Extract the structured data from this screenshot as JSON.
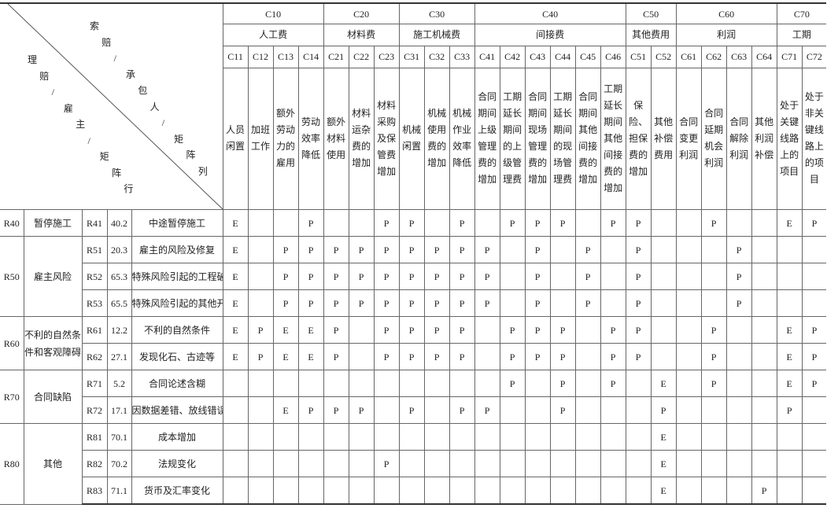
{
  "corner": {
    "upper": "索赔/承包人/矩阵列",
    "lower": "理赔/雇主/矩阵行"
  },
  "groups": [
    {
      "code": "C10",
      "name": "人工费",
      "cols": [
        {
          "code": "C11",
          "label": "人员闲置"
        },
        {
          "code": "C12",
          "label": "加班工作"
        },
        {
          "code": "C13",
          "label": "额外劳动力的雇用"
        },
        {
          "code": "C14",
          "label": "劳动效率降低"
        }
      ]
    },
    {
      "code": "C20",
      "name": "材料费",
      "cols": [
        {
          "code": "C21",
          "label": "额外材料使用"
        },
        {
          "code": "C22",
          "label": "材料运杂费的增加"
        },
        {
          "code": "C23",
          "label": "材料采购及保管费增加"
        }
      ]
    },
    {
      "code": "C30",
      "name": "施工机械费",
      "cols": [
        {
          "code": "C31",
          "label": "机械闲置"
        },
        {
          "code": "C32",
          "label": "机械使用费的增加"
        },
        {
          "code": "C33",
          "label": "机械作业效率降低"
        }
      ]
    },
    {
      "code": "C40",
      "name": "间接费",
      "cols": [
        {
          "code": "C41",
          "label": "合同期间上级管理费的增加"
        },
        {
          "code": "C42",
          "label": "工期延长期间的上级管理费"
        },
        {
          "code": "C43",
          "label": "合同期间现场管理费的增加"
        },
        {
          "code": "C44",
          "label": "工期延长期间的现场管理费"
        },
        {
          "code": "C45",
          "label": "合同期间其他间接费的增加"
        },
        {
          "code": "C46",
          "label": "工期延长期间其他间接费的增加"
        }
      ]
    },
    {
      "code": "C50",
      "name": "其他费用",
      "cols": [
        {
          "code": "C51",
          "label": "保险、担保费的增加"
        },
        {
          "code": "C52",
          "label": "其他补偿费用"
        }
      ]
    },
    {
      "code": "C60",
      "name": "利润",
      "cols": [
        {
          "code": "C61",
          "label": "合同变更利润"
        },
        {
          "code": "C62",
          "label": "合同延期机会利润"
        },
        {
          "code": "C63",
          "label": "合同解除利润"
        },
        {
          "code": "C64",
          "label": "其他利润补偿"
        }
      ]
    },
    {
      "code": "C70",
      "name": "工期",
      "cols": [
        {
          "code": "C71",
          "label": "处于关键线路上的项目"
        },
        {
          "code": "C72",
          "label": "处于非关键线路上的项目"
        }
      ]
    }
  ],
  "row_groups": [
    {
      "code": "R40",
      "name": "暂停施工",
      "rows": [
        {
          "code": "R41",
          "value": "40.2",
          "desc": "中途暂停施工",
          "marks": {
            "C11": "E",
            "C14": "P",
            "C23": "P",
            "C31": "P",
            "C33": "P",
            "C42": "P",
            "C43": "P",
            "C44": "P",
            "C46": "P",
            "C51": "P",
            "C62": "P",
            "C71": "E",
            "C72": "P"
          }
        }
      ]
    },
    {
      "code": "R50",
      "name": "雇主风险",
      "rows": [
        {
          "code": "R51",
          "value": "20.3",
          "desc": "雇主的风险及修复",
          "marks": {
            "C11": "E",
            "C13": "P",
            "C14": "P",
            "C21": "P",
            "C22": "P",
            "C23": "P",
            "C31": "P",
            "C32": "P",
            "C33": "P",
            "C41": "P",
            "C43": "P",
            "C45": "P",
            "C51": "P",
            "C63": "P"
          }
        },
        {
          "code": "R52",
          "value": "65.3",
          "desc": "特殊风险引起的工程破坏",
          "marks": {
            "C11": "E",
            "C13": "P",
            "C14": "P",
            "C21": "P",
            "C22": "P",
            "C23": "P",
            "C31": "P",
            "C32": "P",
            "C33": "P",
            "C41": "P",
            "C43": "P",
            "C45": "P",
            "C51": "P",
            "C63": "P"
          }
        },
        {
          "code": "R53",
          "value": "65.5",
          "desc": "特殊风险引起的其他开支",
          "marks": {
            "C11": "E",
            "C13": "P",
            "C14": "P",
            "C21": "P",
            "C22": "P",
            "C23": "P",
            "C31": "P",
            "C32": "P",
            "C33": "P",
            "C41": "P",
            "C43": "P",
            "C45": "P",
            "C51": "P",
            "C63": "P"
          }
        }
      ]
    },
    {
      "code": "R60",
      "name": "不利的自然条件和客观障碍",
      "rows": [
        {
          "code": "R61",
          "value": "12.2",
          "desc": "不利的自然条件",
          "marks": {
            "C11": "E",
            "C12": "P",
            "C13": "E",
            "C14": "E",
            "C21": "P",
            "C23": "P",
            "C31": "P",
            "C32": "P",
            "C33": "P",
            "C42": "P",
            "C43": "P",
            "C44": "P",
            "C46": "P",
            "C51": "P",
            "C62": "P",
            "C71": "E",
            "C72": "P"
          }
        },
        {
          "code": "R62",
          "value": "27.1",
          "desc": "发现化石、古迹等",
          "marks": {
            "C11": "E",
            "C12": "P",
            "C13": "E",
            "C14": "E",
            "C21": "P",
            "C23": "P",
            "C31": "P",
            "C32": "P",
            "C33": "P",
            "C42": "P",
            "C43": "P",
            "C44": "P",
            "C46": "P",
            "C51": "P",
            "C62": "P",
            "C71": "E",
            "C72": "P"
          }
        }
      ]
    },
    {
      "code": "R70",
      "name": "合同缺陷",
      "rows": [
        {
          "code": "R71",
          "value": "5.2",
          "desc": "合同论述含糊",
          "marks": {
            "C42": "P",
            "C44": "P",
            "C46": "P",
            "C52": "E",
            "C62": "P",
            "C71": "E",
            "C72": "P"
          }
        },
        {
          "code": "R72",
          "value": "17.1",
          "desc": "因数据差错、放线错误",
          "marks": {
            "C13": "E",
            "C14": "P",
            "C21": "P",
            "C22": "P",
            "C31": "P",
            "C33": "P",
            "C41": "P",
            "C44": "P",
            "C52": "P",
            "C71": "P"
          }
        }
      ]
    },
    {
      "code": "R80",
      "name": "其他",
      "rows": [
        {
          "code": "R81",
          "value": "70.1",
          "desc": "成本增加",
          "marks": {
            "C52": "E"
          }
        },
        {
          "code": "R82",
          "value": "70.2",
          "desc": "法规变化",
          "marks": {
            "C23": "P",
            "C52": "E"
          }
        },
        {
          "code": "R83",
          "value": "71.1",
          "desc": "货币及汇率变化",
          "marks": {
            "C52": "E",
            "C64": "P"
          }
        }
      ]
    }
  ]
}
